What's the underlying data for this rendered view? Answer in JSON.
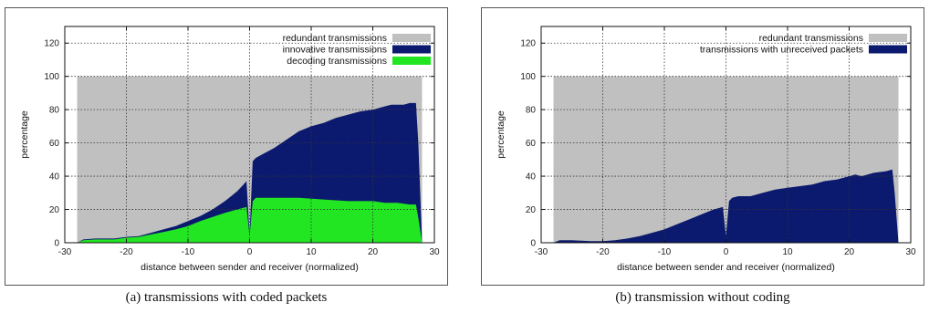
{
  "captions": {
    "a": "(a) transmissions with coded packets",
    "b": "(b) transmission without coding"
  },
  "chart_data": [
    {
      "type": "area",
      "xlabel": "distance between sender and receiver (normalized)",
      "ylabel": "percentage",
      "xlim": [
        -30,
        30
      ],
      "ylim": [
        0,
        130
      ],
      "xticks": [
        -30,
        -20,
        -10,
        0,
        10,
        20,
        30
      ],
      "yticks": [
        0,
        20,
        40,
        60,
        80,
        100,
        120
      ],
      "grid": true,
      "legend_position": "top-right",
      "series": [
        {
          "name": "redundant transmissions",
          "color": "#c0c0c0",
          "x": [
            -28,
            -27.5,
            0,
            27,
            28
          ],
          "y": [
            100,
            100,
            100,
            100,
            100
          ]
        },
        {
          "name": "innovative transmissions",
          "color": "#0b1a6e",
          "x": [
            -28,
            -27,
            -25,
            -22,
            -20,
            -18,
            -16,
            -14,
            -12,
            -10,
            -8,
            -6,
            -4,
            -3,
            -2,
            -1,
            -0.5,
            0,
            0.5,
            1,
            2,
            3,
            4,
            6,
            8,
            10,
            12,
            14,
            16,
            18,
            20,
            22,
            23,
            24,
            25,
            26,
            27,
            27.4,
            28
          ],
          "y": [
            0,
            2,
            2.5,
            2.5,
            3.5,
            4,
            6,
            8,
            10,
            13,
            16,
            20,
            25,
            28,
            31,
            35,
            37,
            5,
            49,
            51,
            53,
            55,
            57,
            62,
            67,
            70,
            72,
            75,
            77,
            79,
            80,
            82,
            83,
            83,
            83,
            84,
            84,
            60,
            0
          ]
        },
        {
          "name": "decoding transmissions",
          "color": "#22e622",
          "x": [
            -28,
            -27,
            -25,
            -22,
            -20,
            -18,
            -16,
            -14,
            -12,
            -10,
            -8,
            -6,
            -4,
            -2,
            -1,
            -0.5,
            0,
            0.5,
            1,
            4,
            8,
            12,
            16,
            20,
            22,
            24,
            26,
            27,
            27.4,
            28
          ],
          "y": [
            0,
            1.5,
            2,
            2,
            3,
            3.5,
            5,
            6.5,
            8,
            10,
            13,
            15.5,
            18,
            20,
            21,
            21.5,
            4,
            25,
            27,
            27,
            27,
            26,
            25,
            25,
            24,
            24,
            23,
            23,
            15,
            0
          ]
        }
      ]
    },
    {
      "type": "area",
      "xlabel": "distance between sender and receiver (normalized)",
      "ylabel": "percentage",
      "xlim": [
        -30,
        30
      ],
      "ylim": [
        0,
        130
      ],
      "xticks": [
        -30,
        -20,
        -10,
        0,
        10,
        20,
        30
      ],
      "yticks": [
        0,
        20,
        40,
        60,
        80,
        100,
        120
      ],
      "grid": true,
      "legend_position": "top-right",
      "series": [
        {
          "name": "redundant transmissions",
          "color": "#c0c0c0",
          "x": [
            -28,
            -27.5,
            0,
            27,
            28
          ],
          "y": [
            100,
            100,
            100,
            100,
            100
          ]
        },
        {
          "name": "transmissions with unreceived packets",
          "color": "#0b1a6e",
          "x": [
            -28,
            -27,
            -25,
            -22,
            -20,
            -18,
            -16,
            -14,
            -12,
            -10,
            -8,
            -6,
            -4,
            -2,
            -1,
            -0.5,
            0,
            0.5,
            1,
            2,
            4,
            6,
            8,
            10,
            12,
            14,
            16,
            18,
            20,
            21,
            22,
            24,
            26,
            27,
            27.4,
            28
          ],
          "y": [
            0,
            1.5,
            1.5,
            1,
            1,
            1.5,
            2.5,
            4,
            6,
            8,
            11,
            14,
            17,
            20,
            21,
            21.5,
            4,
            25,
            27,
            28,
            28,
            30,
            32,
            33,
            34,
            35,
            37,
            38,
            40,
            41,
            40,
            42,
            43,
            44,
            30,
            0
          ]
        }
      ]
    }
  ]
}
